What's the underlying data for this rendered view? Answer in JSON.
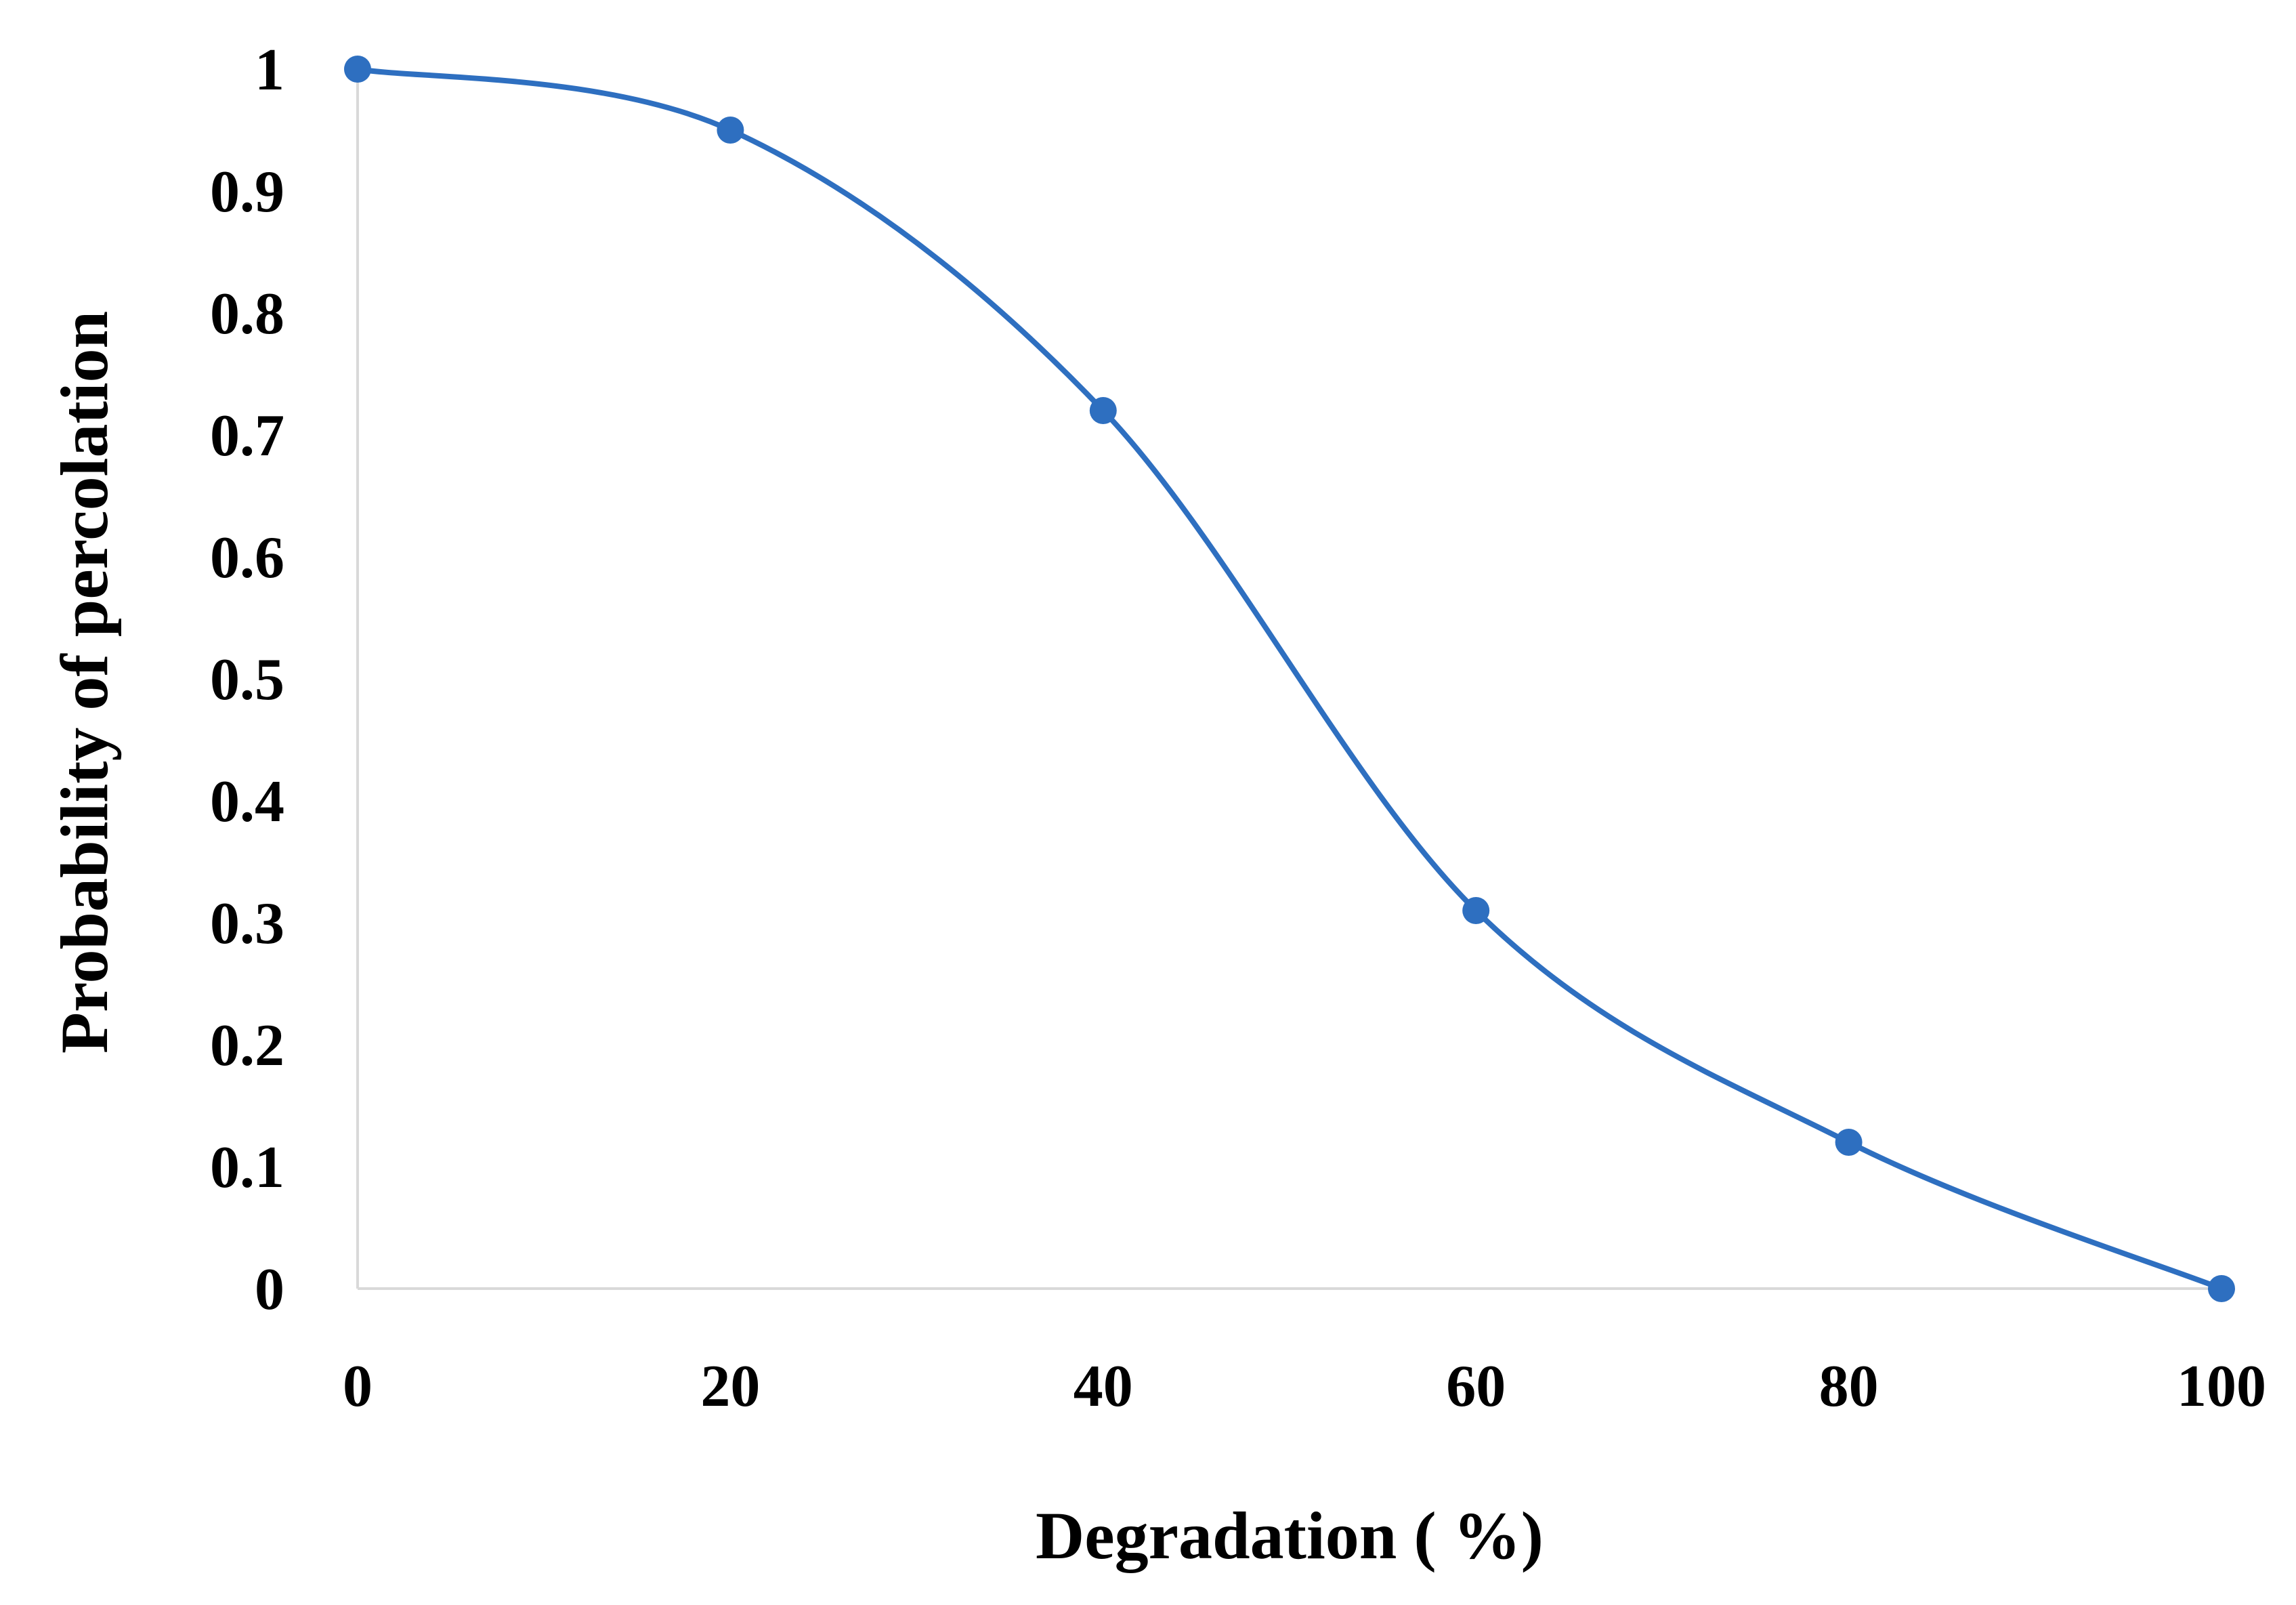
{
  "chart_data": {
    "type": "line",
    "smooth": true,
    "title": "",
    "xlabel": "Degradation ( %)",
    "ylabel": "Probability of percolation",
    "x": [
      0,
      20,
      40,
      60,
      80,
      100
    ],
    "series": [
      {
        "values": [
          1.0,
          0.95,
          0.72,
          0.31,
          0.12,
          0.0
        ],
        "color": "#2E6FC0"
      }
    ],
    "xlim": [
      0,
      100
    ],
    "ylim": [
      0,
      1
    ],
    "x_ticks": [
      "0",
      "20",
      "40",
      "60",
      "80",
      "100"
    ],
    "y_ticks": [
      "0",
      "0.1",
      "0.2",
      "0.3",
      "0.4",
      "0.5",
      "0.6",
      "0.7",
      "0.8",
      "0.9",
      "1"
    ],
    "grid": false,
    "legend": "none",
    "axis_color": "#D9D9D9",
    "marker": "circle"
  }
}
